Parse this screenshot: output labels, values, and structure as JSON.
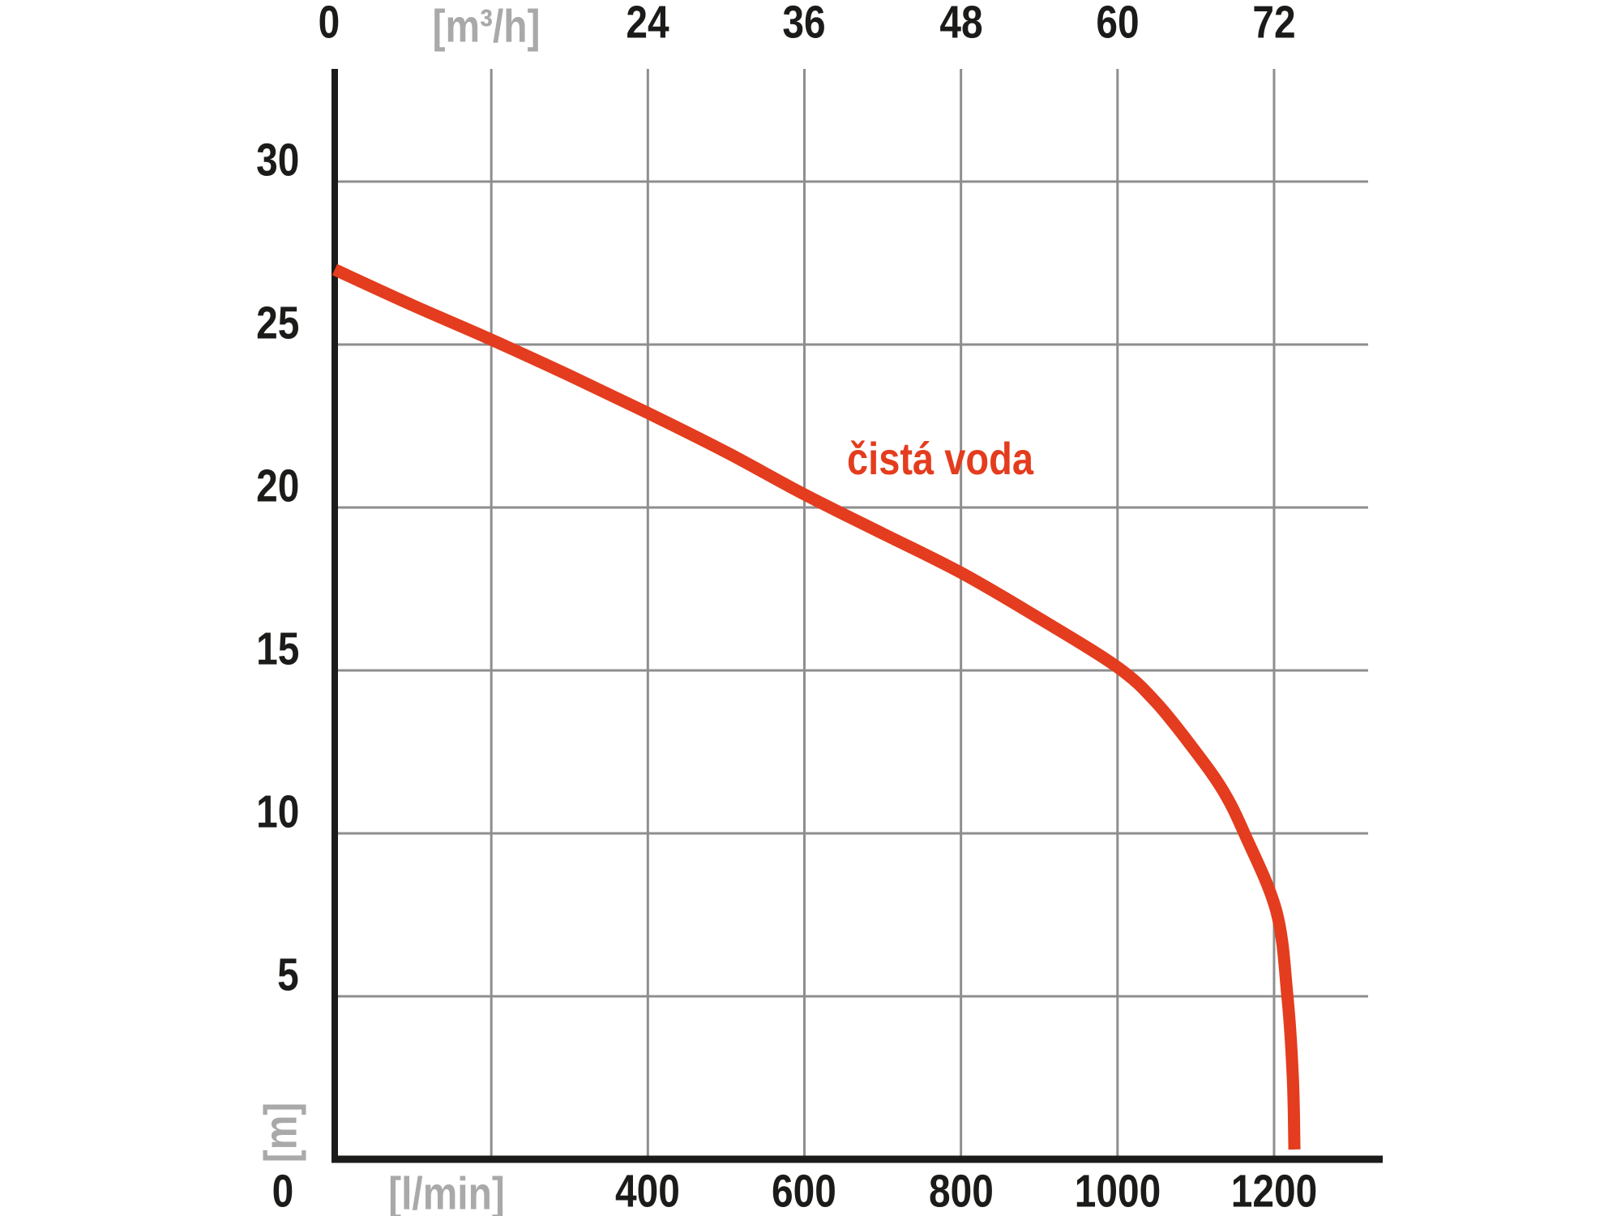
{
  "colors": {
    "curve_red": "#e43c1e",
    "grid_gray": "#8e8e8e",
    "axis_black": "#1b1b19",
    "tick_label_black": "#1b1b19",
    "unit_label_gray": "#a9a9a9",
    "background": "#ffffff"
  },
  "chart_data": {
    "type": "line",
    "title": "",
    "grid": true,
    "legend": "inline-label",
    "x_axis_bottom": {
      "unit_label": "[l/min]",
      "origin_label": "0",
      "tick_labels": [
        "400",
        "600",
        "800",
        "1000",
        "1200"
      ],
      "tick_values_lmin": [
        400,
        600,
        800,
        1000,
        1200
      ],
      "gridline_values_lmin": [
        200,
        400,
        600,
        800,
        1000,
        1200
      ],
      "range_lmin": [
        0,
        1320
      ]
    },
    "x_axis_top": {
      "unit_label": "[m³/h]",
      "origin_label": "0",
      "tick_labels": [
        "24",
        "36",
        "48",
        "60",
        "72"
      ],
      "tick_values_lmin": [
        400,
        600,
        800,
        1000,
        1200
      ]
    },
    "y_axis": {
      "unit_label": "[m]",
      "tick_labels": [
        "30",
        "25",
        "20",
        "15",
        "10",
        "5"
      ],
      "tick_values_m": [
        30,
        25,
        20,
        15,
        10,
        5
      ],
      "range_m": [
        0,
        33.5
      ]
    },
    "series": [
      {
        "name": "čistá voda",
        "color": "#e43c1e",
        "points_lmin_m": [
          [
            0,
            27.3
          ],
          [
            100,
            26.2
          ],
          [
            200,
            25.15
          ],
          [
            300,
            24.05
          ],
          [
            400,
            22.9
          ],
          [
            500,
            21.7
          ],
          [
            600,
            20.4
          ],
          [
            700,
            19.2
          ],
          [
            800,
            18.0
          ],
          [
            900,
            16.6
          ],
          [
            1000,
            15.1
          ],
          [
            1050,
            14.0
          ],
          [
            1100,
            12.5
          ],
          [
            1135,
            11.3
          ],
          [
            1162,
            10.0
          ],
          [
            1203,
            7.6
          ],
          [
            1217,
            5.0
          ],
          [
            1224,
            2.5
          ],
          [
            1226,
            0.3
          ]
        ]
      }
    ]
  }
}
